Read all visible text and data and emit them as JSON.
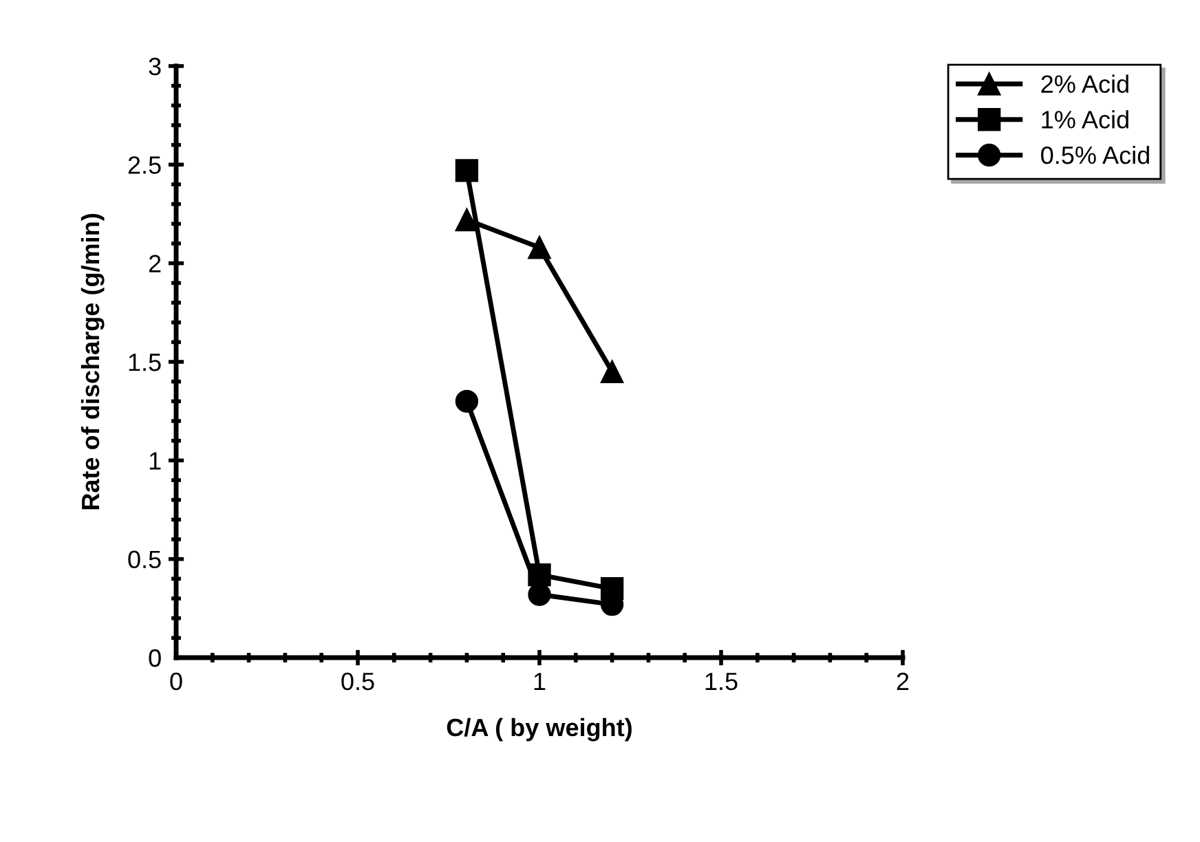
{
  "chart_data": {
    "type": "line",
    "xlabel": "C/A ( by weight)",
    "ylabel": "Rate of discharge (g/min)",
    "x": [
      0.8,
      1.0,
      1.2
    ],
    "series": [
      {
        "name": "2% Acid",
        "color": "#000000",
        "marker": "triangle",
        "values": [
          2.22,
          2.08,
          1.45
        ]
      },
      {
        "name": "1% Acid",
        "color": "#000000",
        "marker": "square",
        "values": [
          2.47,
          0.42,
          0.35
        ]
      },
      {
        "name": "0.5% Acid",
        "color": "#000000",
        "marker": "circle",
        "values": [
          1.3,
          0.32,
          0.27
        ]
      }
    ],
    "xlim": [
      0,
      2
    ],
    "xticks": [
      0,
      0.5,
      1,
      1.5,
      2
    ],
    "ylim": [
      0,
      3
    ],
    "yticks": [
      0,
      0.5,
      1,
      1.5,
      2,
      2.5,
      3
    ],
    "grid": false,
    "legend": "top right",
    "line_style": "solid"
  }
}
